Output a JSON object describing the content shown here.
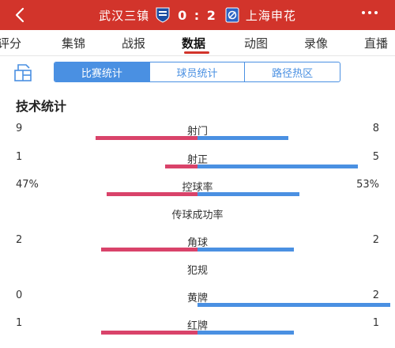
{
  "header": {
    "team_home": "武汉三镇",
    "team_away": "上海申花",
    "score": "0 : 2",
    "colors": {
      "bar": "#d2342b"
    }
  },
  "tabs": [
    {
      "label": "评分"
    },
    {
      "label": "集锦"
    },
    {
      "label": "战报"
    },
    {
      "label": "数据",
      "active": true
    },
    {
      "label": "动图"
    },
    {
      "label": "录像"
    },
    {
      "label": "直播"
    }
  ],
  "segments": [
    {
      "label": "比赛统计",
      "active": true
    },
    {
      "label": "球员统计"
    },
    {
      "label": "路径热区"
    }
  ],
  "section_title": "技术统计",
  "stats": [
    {
      "name": "射门",
      "home": "9",
      "away": "8",
      "home_share": 0.53,
      "away_share": 0.47
    },
    {
      "name": "射正",
      "home": "1",
      "away": "5",
      "home_share": 0.17,
      "away_share": 0.83
    },
    {
      "name": "控球率",
      "home": "47%",
      "away": "53%",
      "home_share": 0.47,
      "away_share": 0.53
    },
    {
      "name": "传球成功率",
      "home": "",
      "away": "",
      "home_share": null,
      "away_share": null
    },
    {
      "name": "角球",
      "home": "2",
      "away": "2",
      "home_share": 0.5,
      "away_share": 0.5
    },
    {
      "name": "犯规",
      "home": "",
      "away": "",
      "home_share": null,
      "away_share": null
    },
    {
      "name": "黄牌",
      "home": "0",
      "away": "2",
      "home_share": 0,
      "away_share": 1
    },
    {
      "name": "红牌",
      "home": "1",
      "away": "1",
      "home_share": 0.5,
      "away_share": 0.5
    }
  ],
  "colors": {
    "home": "#d9436a",
    "away": "#4a90e2",
    "accent": "#4a90e2"
  }
}
